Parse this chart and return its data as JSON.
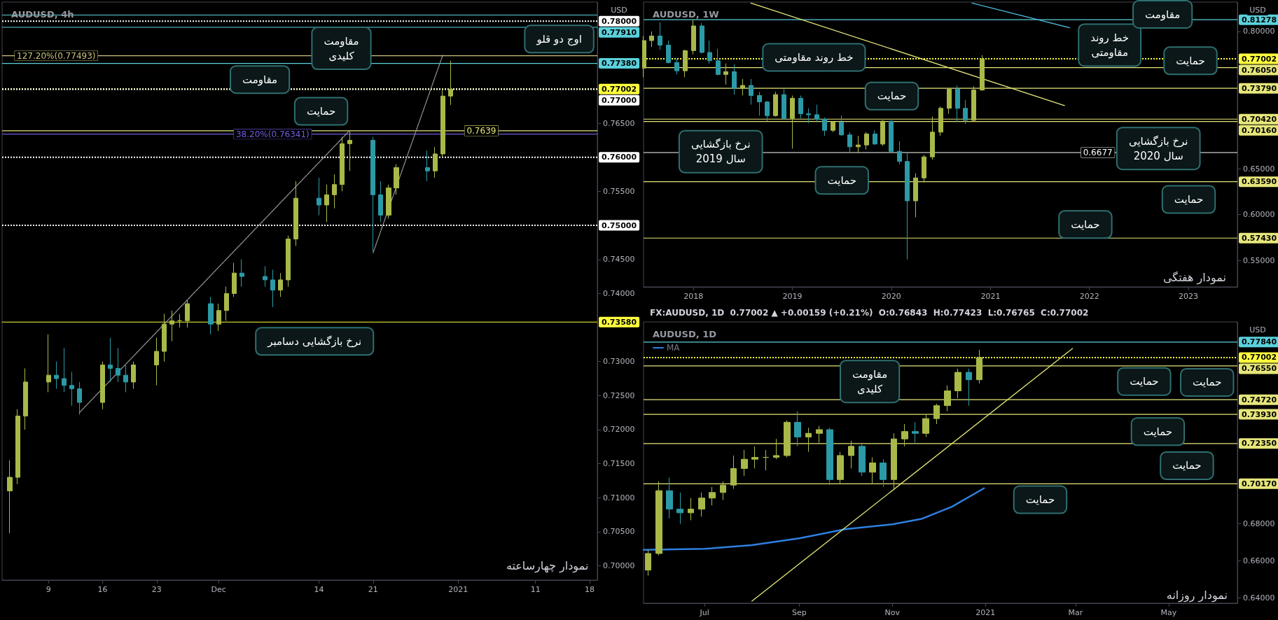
{
  "chart_data": [
    {
      "type": "candlestick",
      "title": "AUDUSD, 4h",
      "ylabel": "USD",
      "x": [
        "2020-11-04",
        "2020-11-05",
        "2020-11-06",
        "2020-11-09",
        "2020-11-10",
        "2020-11-11",
        "2020-11-12",
        "2020-11-13",
        "2020-11-16",
        "2020-11-17",
        "2020-11-18",
        "2020-11-19",
        "2020-11-20",
        "2020-11-23",
        "2020-11-24",
        "2020-11-25",
        "2020-11-26",
        "2020-11-27",
        "2020-11-30",
        "2020-12-01",
        "2020-12-02",
        "2020-12-03",
        "2020-12-04",
        "2020-12-07",
        "2020-12-08",
        "2020-12-09",
        "2020-12-10",
        "2020-12-11",
        "2020-12-14",
        "2020-12-15",
        "2020-12-16",
        "2020-12-17",
        "2020-12-18",
        "2020-12-21",
        "2020-12-22",
        "2020-12-23",
        "2020-12-24",
        "2020-12-28",
        "2020-12-29",
        "2020-12-30",
        "2020-12-31"
      ],
      "ohlc": [
        [
          0.711,
          0.7155,
          0.7048,
          0.713
        ],
        [
          0.713,
          0.723,
          0.712,
          0.722
        ],
        [
          0.722,
          0.729,
          0.72,
          0.727
        ],
        [
          0.727,
          0.734,
          0.7255,
          0.728
        ],
        [
          0.728,
          0.73,
          0.726,
          0.7275
        ],
        [
          0.7275,
          0.732,
          0.7255,
          0.7265
        ],
        [
          0.7265,
          0.7285,
          0.7235,
          0.726
        ],
        [
          0.726,
          0.727,
          0.7222,
          0.724
        ],
        [
          0.724,
          0.73,
          0.723,
          0.7295
        ],
        [
          0.7295,
          0.7335,
          0.727,
          0.729
        ],
        [
          0.729,
          0.732,
          0.727,
          0.728
        ],
        [
          0.728,
          0.7295,
          0.7255,
          0.727
        ],
        [
          0.727,
          0.73,
          0.726,
          0.7295
        ],
        [
          0.7295,
          0.7335,
          0.7265,
          0.7315
        ],
        [
          0.7315,
          0.737,
          0.73,
          0.7355
        ],
        [
          0.7355,
          0.7375,
          0.733,
          0.736
        ],
        [
          0.736,
          0.737,
          0.735,
          0.736
        ],
        [
          0.736,
          0.739,
          0.735,
          0.7385
        ],
        [
          0.7385,
          0.7395,
          0.734,
          0.7355
        ],
        [
          0.7355,
          0.7385,
          0.7345,
          0.7375
        ],
        [
          0.7375,
          0.741,
          0.736,
          0.74
        ],
        [
          0.74,
          0.7445,
          0.7395,
          0.743
        ],
        [
          0.743,
          0.745,
          0.741,
          0.7425
        ],
        [
          0.7425,
          0.744,
          0.741,
          0.742
        ],
        [
          0.742,
          0.7435,
          0.738,
          0.7405
        ],
        [
          0.7405,
          0.743,
          0.7395,
          0.742
        ],
        [
          0.742,
          0.7485,
          0.741,
          0.748
        ],
        [
          0.748,
          0.7565,
          0.747,
          0.754
        ],
        [
          0.754,
          0.757,
          0.7515,
          0.753
        ],
        [
          0.753,
          0.756,
          0.7505,
          0.7545
        ],
        [
          0.7545,
          0.7575,
          0.7525,
          0.756
        ],
        [
          0.756,
          0.763,
          0.755,
          0.762
        ],
        [
          0.762,
          0.7639,
          0.758,
          0.7625
        ],
        [
          0.7625,
          0.763,
          0.7462,
          0.7545
        ],
        [
          0.7545,
          0.7565,
          0.7505,
          0.7515
        ],
        [
          0.7515,
          0.756,
          0.751,
          0.7555
        ],
        [
          0.7555,
          0.759,
          0.7545,
          0.7585
        ],
        [
          0.7585,
          0.761,
          0.7565,
          0.758
        ],
        [
          0.758,
          0.7615,
          0.757,
          0.7605
        ],
        [
          0.7605,
          0.77,
          0.76,
          0.769
        ],
        [
          0.769,
          0.7742,
          0.7677,
          0.77
        ]
      ],
      "series": [
        {
          "type": "line",
          "x": [
            "2020-11-13",
            "2020-12-18"
          ],
          "values": [
            0.7225,
            0.764
          ],
          "color": "#9a9a9a",
          "line_style": "dotted"
        },
        {
          "type": "line",
          "x": [
            "2020-12-21",
            "2020-12-30"
          ],
          "values": [
            0.746,
            0.775
          ],
          "color": "#9a9a9a",
          "line_style": "dotted"
        }
      ],
      "xlim": [
        "2020-11-03",
        "2021-01-19"
      ],
      "xticks": [
        {
          "value": "2020-11-09",
          "label": "9"
        },
        {
          "value": "2020-11-16",
          "label": "16"
        },
        {
          "value": "2020-11-23",
          "label": "23"
        },
        {
          "value": "2020-12-01",
          "label": "Dec"
        },
        {
          "value": "2020-12-14",
          "label": "14"
        },
        {
          "value": "2020-12-21",
          "label": "21"
        },
        {
          "value": "2021-01-01",
          "label": "2021"
        },
        {
          "value": "2021-01-11",
          "label": "11"
        },
        {
          "value": "2021-01-18",
          "label": "18"
        }
      ],
      "ylim": [
        0.6979,
        0.7828
      ],
      "yticks": [
        {
          "value": 0.7,
          "label": "0.70000"
        },
        {
          "value": 0.705,
          "label": "0.70500"
        },
        {
          "value": 0.71,
          "label": "0.71000"
        },
        {
          "value": 0.715,
          "label": "0.71500"
        },
        {
          "value": 0.72,
          "label": "0.72000"
        },
        {
          "value": 0.725,
          "label": "0.72500"
        },
        {
          "value": 0.73,
          "label": "0.73000"
        },
        {
          "value": 0.74,
          "label": "0.74000"
        },
        {
          "value": 0.745,
          "label": "0.74500"
        },
        {
          "value": 0.755,
          "label": "0.75500"
        },
        {
          "value": 0.765,
          "label": "0.76500"
        }
      ],
      "ref_lines": [
        {
          "axis": "y",
          "value": 0.7809,
          "color": "#5ad1dc"
        },
        {
          "axis": "y",
          "value": 0.78,
          "color": "#ffffff",
          "line_style": "dotted",
          "label": "0.78000"
        },
        {
          "axis": "y",
          "value": 0.7791,
          "color": "#5ad1dc",
          "label": "0.77910"
        },
        {
          "axis": "y",
          "value": 0.77493,
          "color": "#c9c27a"
        },
        {
          "axis": "y",
          "value": 0.7738,
          "color": "#5ad1dc",
          "label": "0.77380"
        },
        {
          "axis": "y",
          "value": 0.77002,
          "color": "#ffff3c",
          "line_style": "dotted",
          "label": "0.77002"
        },
        {
          "axis": "y",
          "value": 0.77,
          "color": "#ffffff",
          "line_style": "dotted",
          "label": "0.77000"
        },
        {
          "axis": "y",
          "value": 0.7639,
          "color": "#e6e67a"
        },
        {
          "axis": "y",
          "value": 0.76341,
          "color": "#6f5de0"
        },
        {
          "axis": "y",
          "value": 0.76,
          "color": "#ffffff",
          "line_style": "dotted",
          "label": "0.76000"
        },
        {
          "axis": "y",
          "value": 0.75,
          "color": "#ffffff",
          "line_style": "dotted",
          "label": "0.75000"
        },
        {
          "axis": "y",
          "value": 0.7358,
          "color": "#ffff3c",
          "label": "0.73580"
        }
      ],
      "annotations": [
        {
          "text": "127.20%(0.77493)",
          "x": "2020-11-10",
          "y": 0.77493
        },
        {
          "text": "38.20%(0.76341)",
          "x": "2020-12-08",
          "y": 0.76341
        },
        {
          "text": "0.7639",
          "x": "2021-01-04",
          "y": 0.7639
        },
        "مقاومت\nکلیدی",
        "اوج دو قلو",
        "مقاومت",
        "حمایت",
        "نرخ بازگشایی دسامبر",
        "نمودار چهارساعته"
      ]
    },
    {
      "type": "candlestick",
      "title": "AUDUSD, 1W",
      "ylabel": "USD",
      "x": [
        "2017-07",
        "2017-08",
        "2017-09",
        "2017-10",
        "2017-11",
        "2017-12",
        "2018-01",
        "2018-02",
        "2018-03",
        "2018-04",
        "2018-05",
        "2018-06",
        "2018-07",
        "2018-08",
        "2018-09",
        "2018-10",
        "2018-11",
        "2018-12",
        "2019-01",
        "2019-02",
        "2019-03",
        "2019-04",
        "2019-05",
        "2019-06",
        "2019-07",
        "2019-08",
        "2019-09",
        "2019-10",
        "2019-11",
        "2019-12",
        "2020-01",
        "2020-02",
        "2020-03",
        "2020-04",
        "2020-05",
        "2020-06",
        "2020-07",
        "2020-08",
        "2020-09",
        "2020-10",
        "2020-11",
        "2020-12"
      ],
      "ohlc": [
        [
          0.76,
          0.795,
          0.75,
          0.79
        ],
        [
          0.79,
          0.8,
          0.783,
          0.795
        ],
        [
          0.795,
          0.81,
          0.78,
          0.785
        ],
        [
          0.785,
          0.79,
          0.765,
          0.766
        ],
        [
          0.766,
          0.77,
          0.753,
          0.757
        ],
        [
          0.757,
          0.78,
          0.75,
          0.779
        ],
        [
          0.779,
          0.813,
          0.775,
          0.806
        ],
        [
          0.806,
          0.809,
          0.776,
          0.777
        ],
        [
          0.777,
          0.79,
          0.765,
          0.768
        ],
        [
          0.768,
          0.781,
          0.752,
          0.753
        ],
        [
          0.753,
          0.765,
          0.742,
          0.756
        ],
        [
          0.756,
          0.764,
          0.731,
          0.738
        ],
        [
          0.738,
          0.748,
          0.73,
          0.741
        ],
        [
          0.741,
          0.748,
          0.72,
          0.73
        ],
        [
          0.73,
          0.734,
          0.708,
          0.723
        ],
        [
          0.723,
          0.724,
          0.702,
          0.708
        ],
        [
          0.708,
          0.734,
          0.707,
          0.731
        ],
        [
          0.731,
          0.737,
          0.704,
          0.705
        ],
        [
          0.705,
          0.73,
          0.672,
          0.727
        ],
        [
          0.727,
          0.73,
          0.705,
          0.71
        ],
        [
          0.71,
          0.716,
          0.7,
          0.709
        ],
        [
          0.709,
          0.72,
          0.701,
          0.704
        ],
        [
          0.704,
          0.706,
          0.686,
          0.692
        ],
        [
          0.692,
          0.702,
          0.69,
          0.701
        ],
        [
          0.701,
          0.708,
          0.686,
          0.687
        ],
        [
          0.687,
          0.69,
          0.668,
          0.674
        ],
        [
          0.674,
          0.686,
          0.667,
          0.676
        ],
        [
          0.676,
          0.69,
          0.671,
          0.688
        ],
        [
          0.688,
          0.692,
          0.676,
          0.677
        ],
        [
          0.677,
          0.703,
          0.675,
          0.702
        ],
        [
          0.702,
          0.703,
          0.667,
          0.669
        ],
        [
          0.669,
          0.68,
          0.655,
          0.658
        ],
        [
          0.658,
          0.667,
          0.551,
          0.615
        ],
        [
          0.615,
          0.645,
          0.597,
          0.64
        ],
        [
          0.64,
          0.665,
          0.635,
          0.663
        ],
        [
          0.663,
          0.707,
          0.66,
          0.69
        ],
        [
          0.69,
          0.718,
          0.686,
          0.716
        ],
        [
          0.716,
          0.738,
          0.71,
          0.737
        ],
        [
          0.737,
          0.741,
          0.701,
          0.716
        ],
        [
          0.716,
          0.725,
          0.699,
          0.703
        ],
        [
          0.703,
          0.74,
          0.702,
          0.736
        ],
        [
          0.736,
          0.774,
          0.735,
          0.77
        ]
      ],
      "series": [
        {
          "type": "line",
          "x": [
            "2018-08",
            "2021-10"
          ],
          "values": [
            0.831,
            0.719
          ],
          "color": "#e6e67a",
          "line_style": "solid"
        },
        {
          "type": "line",
          "x": [
            "2020-10-25",
            "2021-10-20"
          ],
          "values": [
            0.8309,
            0.804
          ],
          "color": "#4fb3d9",
          "line_style": "solid"
        }
      ],
      "xlim": [
        "2017-07-01",
        "2023-07-01"
      ],
      "xticks": [
        {
          "value": "2018",
          "label": "2018"
        },
        {
          "value": "2019",
          "label": "2019"
        },
        {
          "value": "2020",
          "label": "2020"
        },
        {
          "value": "2021",
          "label": "2021"
        },
        {
          "value": "2022",
          "label": "2022"
        },
        {
          "value": "2023",
          "label": "2023"
        }
      ],
      "ylim": [
        0.521,
        0.832
      ],
      "yticks": [
        {
          "value": 0.55,
          "label": "0.55000"
        },
        {
          "value": 0.6,
          "label": "0.60000"
        },
        {
          "value": 0.65,
          "label": "0.65000"
        },
        {
          "value": 0.8,
          "label": "0.80000"
        }
      ],
      "ref_lines": [
        {
          "axis": "y",
          "value": 0.81278,
          "color": "#5ad1dc",
          "label": "0.81278"
        },
        {
          "axis": "y",
          "value": 0.77002,
          "color": "#ffff3c",
          "line_style": "dotted",
          "label": "0.77002"
        },
        {
          "axis": "y",
          "value": 0.7605,
          "color": "#e6e67a",
          "label": "0.76050"
        },
        {
          "axis": "y",
          "value": 0.7379,
          "color": "#e6e67a",
          "label": "0.73790"
        },
        {
          "axis": "y",
          "value": 0.7042,
          "color": "#e6e67a",
          "label": "0.70420"
        },
        {
          "axis": "y",
          "value": 0.7016,
          "color": "#e6e67a",
          "label": "0.70160"
        },
        {
          "axis": "y",
          "value": 0.6677,
          "color": "#ffffff"
        },
        {
          "axis": "y",
          "value": 0.6359,
          "color": "#e6e67a",
          "label": "0.63590"
        },
        {
          "axis": "y",
          "value": 0.5743,
          "color": "#e6e67a",
          "label": "0.57430"
        }
      ],
      "annotations": [
        {
          "text": "0.6677",
          "x": "2022-02",
          "y": 0.6677
        },
        "خط روند مقاومتی",
        "خط روند\nمقاومتی",
        "مقاومت",
        "حمایت",
        "حمایت",
        "نرخ بازگشایی\nسال 2019",
        "نرخ بازگشایی\nسال 2020",
        "حمایت",
        "حمایت",
        "حمایت",
        "نمودار هفتگی"
      ]
    },
    {
      "type": "candlestick",
      "title": "AUDUSD, 1D",
      "subtitle": "FX:AUDUSD, 1D  0.77002 ▲ +0.00159 (+0.21%)  O:0.76843  H:0.77423  L:0.76765  C:0.77002",
      "ylabel": "USD",
      "legend": "top left",
      "x": [
        "2020-05-25",
        "2020-06-01",
        "2020-06-08",
        "2020-06-15",
        "2020-06-22",
        "2020-06-29",
        "2020-07-06",
        "2020-07-13",
        "2020-07-20",
        "2020-07-27",
        "2020-08-03",
        "2020-08-10",
        "2020-08-17",
        "2020-08-24",
        "2020-08-31",
        "2020-09-07",
        "2020-09-14",
        "2020-09-21",
        "2020-09-28",
        "2020-10-05",
        "2020-10-12",
        "2020-10-19",
        "2020-10-26",
        "2020-11-02",
        "2020-11-09",
        "2020-11-16",
        "2020-11-23",
        "2020-11-30",
        "2020-12-07",
        "2020-12-14",
        "2020-12-21",
        "2020-12-28"
      ],
      "ohlc": [
        [
          0.655,
          0.666,
          0.652,
          0.664
        ],
        [
          0.664,
          0.703,
          0.663,
          0.698
        ],
        [
          0.698,
          0.705,
          0.683,
          0.688
        ],
        [
          0.688,
          0.697,
          0.68,
          0.686
        ],
        [
          0.686,
          0.694,
          0.682,
          0.688
        ],
        [
          0.688,
          0.697,
          0.684,
          0.694
        ],
        [
          0.694,
          0.7,
          0.69,
          0.697
        ],
        [
          0.697,
          0.703,
          0.693,
          0.701
        ],
        [
          0.701,
          0.717,
          0.699,
          0.71
        ],
        [
          0.71,
          0.72,
          0.706,
          0.715
        ],
        [
          0.715,
          0.722,
          0.71,
          0.716
        ],
        [
          0.716,
          0.72,
          0.709,
          0.716
        ],
        [
          0.716,
          0.726,
          0.715,
          0.717
        ],
        [
          0.717,
          0.736,
          0.716,
          0.735
        ],
        [
          0.735,
          0.741,
          0.722,
          0.727
        ],
        [
          0.727,
          0.732,
          0.719,
          0.729
        ],
        [
          0.729,
          0.733,
          0.724,
          0.731
        ],
        [
          0.731,
          0.732,
          0.701,
          0.704
        ],
        [
          0.704,
          0.719,
          0.702,
          0.717
        ],
        [
          0.717,
          0.725,
          0.71,
          0.722
        ],
        [
          0.722,
          0.724,
          0.706,
          0.708
        ],
        [
          0.708,
          0.716,
          0.702,
          0.713
        ],
        [
          0.713,
          0.715,
          0.7,
          0.704
        ],
        [
          0.704,
          0.729,
          0.699,
          0.726
        ],
        [
          0.726,
          0.734,
          0.722,
          0.73
        ],
        [
          0.73,
          0.735,
          0.724,
          0.729
        ],
        [
          0.729,
          0.739,
          0.727,
          0.737
        ],
        [
          0.737,
          0.745,
          0.734,
          0.744
        ],
        [
          0.744,
          0.755,
          0.741,
          0.752
        ],
        [
          0.752,
          0.764,
          0.748,
          0.762
        ],
        [
          0.762,
          0.764,
          0.744,
          0.758
        ],
        [
          0.758,
          0.7742,
          0.756,
          0.77
        ]
      ],
      "series": [
        {
          "type": "line",
          "name": "MA",
          "x": [
            "2020-05-22",
            "2020-07-01",
            "2020-08-01",
            "2020-09-01",
            "2020-10-01",
            "2020-11-01",
            "2020-11-20",
            "2020-12-10",
            "2020-12-31"
          ],
          "values": [
            0.666,
            0.6665,
            0.6685,
            0.6722,
            0.6771,
            0.6798,
            0.6827,
            0.6893,
            0.6993
          ],
          "color": "#2f7fe0",
          "line_style": "solid"
        },
        {
          "type": "line",
          "x": [
            "2020-08-01",
            "2021-02-27"
          ],
          "values": [
            0.6382,
            0.7749
          ],
          "color": "#e6e67a",
          "line_style": "solid"
        }
      ],
      "xlim": [
        "2020-05-22",
        "2021-06-15"
      ],
      "xticks": [
        {
          "value": "2020-07-01",
          "label": "Jul"
        },
        {
          "value": "2020-09-01",
          "label": "Sep"
        },
        {
          "value": "2020-11-01",
          "label": "Nov"
        },
        {
          "value": "2021-01-01",
          "label": "2021"
        },
        {
          "value": "2021-03-01",
          "label": "Mar"
        },
        {
          "value": "2021-05-01",
          "label": "May"
        }
      ],
      "ylim": [
        0.6371,
        0.7893
      ],
      "yticks": [
        {
          "value": 0.64,
          "label": "0.64000"
        },
        {
          "value": 0.66,
          "label": "0.66000"
        },
        {
          "value": 0.68,
          "label": "0.68000"
        }
      ],
      "ref_lines": [
        {
          "axis": "y",
          "value": 0.7784,
          "color": "#5ad1dc",
          "label": "0.77840"
        },
        {
          "axis": "y",
          "value": 0.77002,
          "color": "#ffff3c",
          "line_style": "dotted",
          "label": "0.77002"
        },
        {
          "axis": "y",
          "value": 0.7655,
          "color": "#e6e67a",
          "label": "0.76550"
        },
        {
          "axis": "y",
          "value": 0.7472,
          "color": "#e6e67a",
          "label": "0.74720"
        },
        {
          "axis": "y",
          "value": 0.7393,
          "color": "#e6e67a",
          "label": "0.73930"
        },
        {
          "axis": "y",
          "value": 0.7235,
          "color": "#e6e67a",
          "label": "0.72350"
        },
        {
          "axis": "y",
          "value": 0.7017,
          "color": "#e6e67a",
          "label": "0.70170"
        }
      ],
      "annotations": [
        "مقاومت\nکلیدی",
        "حمایت",
        "حمایت",
        "حمایت",
        "حمایت",
        "حمایت",
        "نمودار روزانه"
      ]
    }
  ]
}
